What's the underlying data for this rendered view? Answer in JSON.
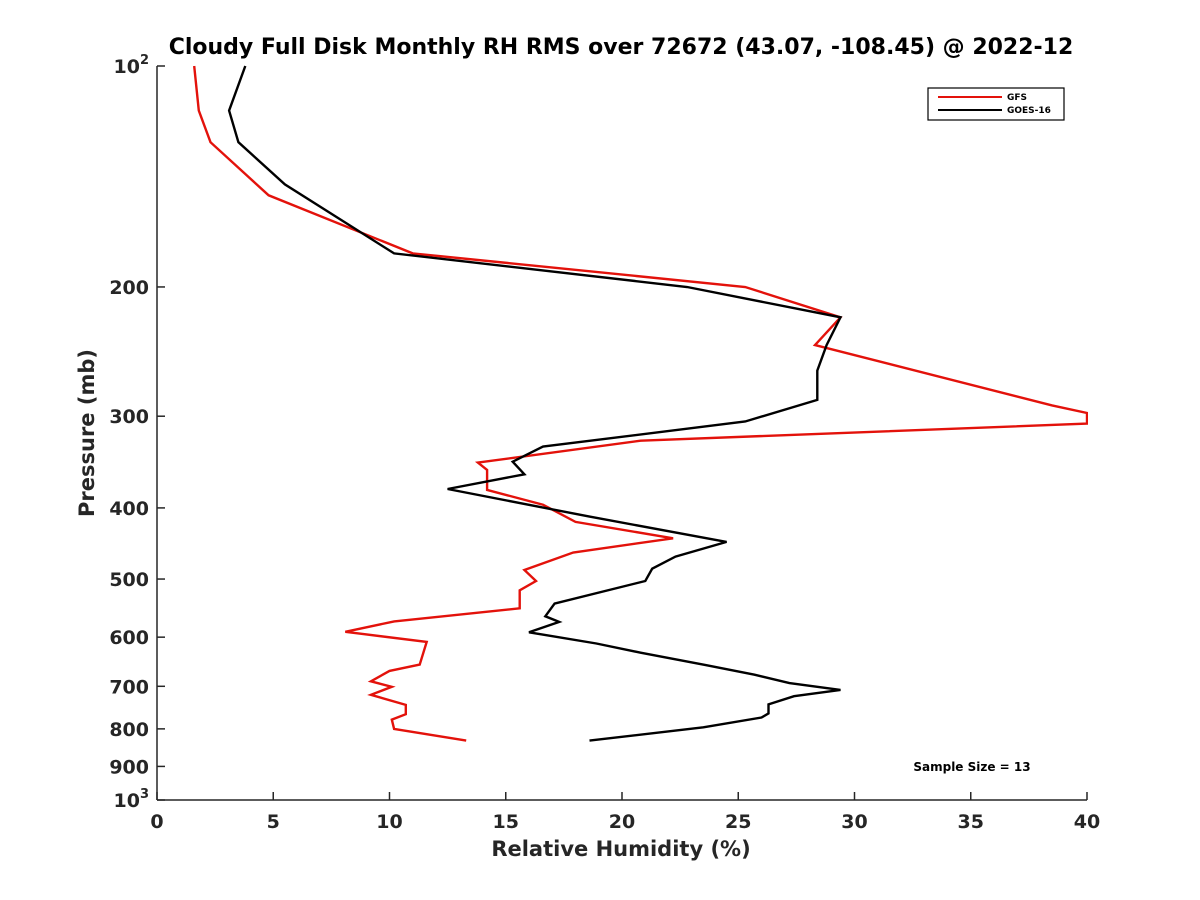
{
  "chart_data": {
    "type": "line",
    "title": "Cloudy Full Disk Monthly RH RMS over 72672 (43.07, -108.45) @ 2022-12",
    "xlabel": "Relative Humidity (%)",
    "ylabel": "Pressure (mb)",
    "xlim": [
      0,
      40
    ],
    "ylim": [
      100,
      1000
    ],
    "y_scale": "log",
    "y_reversed": true,
    "grid": false,
    "x_ticks": [
      0,
      5,
      10,
      15,
      20,
      25,
      30,
      35,
      40
    ],
    "x_tick_labels": [
      "0",
      "5",
      "10",
      "15",
      "20",
      "25",
      "30",
      "35",
      "40"
    ],
    "y_ticks": [
      100,
      200,
      300,
      400,
      500,
      600,
      700,
      800,
      900,
      1000
    ],
    "y_tick_labels": [
      {
        "base": "10",
        "sup": "2"
      },
      {
        "base": "200",
        "sup": ""
      },
      {
        "base": "300",
        "sup": ""
      },
      {
        "base": "400",
        "sup": ""
      },
      {
        "base": "500",
        "sup": ""
      },
      {
        "base": "600",
        "sup": ""
      },
      {
        "base": "700",
        "sup": ""
      },
      {
        "base": "800",
        "sup": ""
      },
      {
        "base": "900",
        "sup": ""
      },
      {
        "base": "10",
        "sup": "3"
      }
    ],
    "legend_position": "top-right",
    "annotation": "Sample Size = 13",
    "series": [
      {
        "name": "GFS",
        "color": "#e3120b",
        "points": [
          [
            1.6,
            100
          ],
          [
            1.8,
            115
          ],
          [
            2.3,
            127
          ],
          [
            4.8,
            150
          ],
          [
            11.0,
            180
          ],
          [
            25.3,
            200
          ],
          [
            29.4,
            220
          ],
          [
            28.3,
            240
          ],
          [
            38.5,
            290
          ],
          [
            40.0,
            297
          ],
          [
            40.0,
            307
          ],
          [
            20.8,
            324
          ],
          [
            13.8,
            347
          ],
          [
            14.2,
            355
          ],
          [
            14.2,
            378
          ],
          [
            16.6,
            396
          ],
          [
            18.0,
            418
          ],
          [
            22.2,
            440
          ],
          [
            17.9,
            460
          ],
          [
            15.8,
            486
          ],
          [
            16.3,
            503
          ],
          [
            15.6,
            518
          ],
          [
            15.6,
            548
          ],
          [
            10.2,
            571
          ],
          [
            8.1,
            590
          ],
          [
            11.6,
            609
          ],
          [
            11.3,
            654
          ],
          [
            10.0,
            667
          ],
          [
            9.2,
            689
          ],
          [
            10.1,
            701
          ],
          [
            9.2,
            719
          ],
          [
            10.7,
            742
          ],
          [
            10.7,
            764
          ],
          [
            10.1,
            777
          ],
          [
            10.2,
            800
          ],
          [
            13.3,
            830
          ]
        ]
      },
      {
        "name": "GOES-16",
        "color": "#000000",
        "points": [
          [
            3.8,
            100
          ],
          [
            3.1,
            115
          ],
          [
            3.5,
            127
          ],
          [
            5.5,
            145
          ],
          [
            10.2,
            180
          ],
          [
            22.8,
            200
          ],
          [
            29.4,
            220
          ],
          [
            28.8,
            240
          ],
          [
            28.4,
            260
          ],
          [
            28.4,
            285
          ],
          [
            25.3,
            305
          ],
          [
            16.6,
            330
          ],
          [
            15.3,
            346
          ],
          [
            15.8,
            360
          ],
          [
            12.5,
            377
          ],
          [
            18.6,
            411
          ],
          [
            24.5,
            445
          ],
          [
            22.3,
            466
          ],
          [
            21.3,
            484
          ],
          [
            21.0,
            503
          ],
          [
            17.1,
            540
          ],
          [
            16.7,
            562
          ],
          [
            17.3,
            572
          ],
          [
            16.0,
            591
          ],
          [
            18.9,
            612
          ],
          [
            20.8,
            630
          ],
          [
            23.6,
            655
          ],
          [
            25.7,
            675
          ],
          [
            27.2,
            693
          ],
          [
            29.4,
            708
          ],
          [
            27.4,
            722
          ],
          [
            26.3,
            741
          ],
          [
            26.3,
            762
          ],
          [
            26.0,
            772
          ],
          [
            23.5,
            796
          ],
          [
            18.6,
            830
          ]
        ]
      }
    ]
  }
}
